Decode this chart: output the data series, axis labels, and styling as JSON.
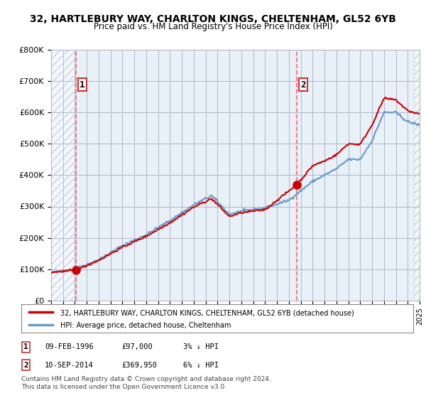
{
  "title": "32, HARTLEBURY WAY, CHARLTON KINGS, CHELTENHAM, GL52 6YB",
  "subtitle": "Price paid vs. HM Land Registry's House Price Index (HPI)",
  "sale1_date": 1996.11,
  "sale1_price": 97000,
  "sale1_label": "1",
  "sale2_date": 2014.69,
  "sale2_price": 369950,
  "sale2_label": "2",
  "hpi_color": "#6699cc",
  "price_color": "#cc0000",
  "dashed_line_color": "#ff6666",
  "marker_color": "#cc0000",
  "legend_line1": "32, HARTLEBURY WAY, CHARLTON KINGS, CHELTENHAM, GL52 6YB (detached house)",
  "legend_line2": "HPI: Average price, detached house, Cheltenham",
  "annotation1": "1    09-FEB-1996         £97,000         3% ↓ HPI",
  "annotation2": "2    10-SEP-2014         £369,950        6% ↓ HPI",
  "footer": "Contains HM Land Registry data © Crown copyright and database right 2024.\nThis data is licensed under the Open Government Licence v3.0.",
  "xmin": 1994,
  "xmax": 2025,
  "ymin": 0,
  "ymax": 800000,
  "yticks": [
    0,
    100000,
    200000,
    300000,
    400000,
    500000,
    600000,
    700000,
    800000
  ],
  "ytick_labels": [
    "£0",
    "£100K",
    "£200K",
    "£300K",
    "£400K",
    "£500K",
    "£600K",
    "£700K",
    "£800K"
  ],
  "bg_color": "#e8f0f8",
  "plot_bg_hatch_color": "#c8d4e0",
  "grid_color": "#b0b8c8"
}
